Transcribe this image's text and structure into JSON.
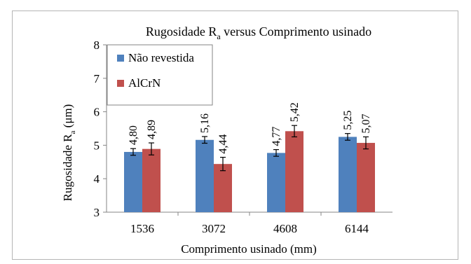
{
  "chart_data": {
    "type": "bar",
    "title_main": "Rugosidade R",
    "title_sub": "a",
    "title_rest": " versus Comprimento usinado",
    "xlabel": "Comprimento usinado (mm)",
    "ylabel_main": "Rugosidade R",
    "ylabel_sub": "a",
    "ylabel_rest": " (μm)",
    "categories": [
      "1536",
      "3072",
      "4608",
      "6144"
    ],
    "ylim": [
      3,
      8
    ],
    "yticks": [
      "3",
      "4",
      "5",
      "6",
      "7",
      "8"
    ],
    "grid": false,
    "legend_position": "top-left",
    "series": [
      {
        "name": "Não revestida",
        "color": "#4f81bd",
        "values": [
          4.8,
          5.16,
          4.77,
          5.25
        ],
        "labels": [
          "4,80",
          "5,16",
          "4,77",
          "5,25"
        ],
        "errors": [
          0.1,
          0.1,
          0.1,
          0.1
        ]
      },
      {
        "name": "AlCrN",
        "color": "#c0504d",
        "values": [
          4.89,
          4.44,
          5.42,
          5.07
        ],
        "labels": [
          "4,89",
          "4,44",
          "5,42",
          "5,07"
        ],
        "errors": [
          0.18,
          0.2,
          0.17,
          0.18
        ]
      }
    ]
  }
}
